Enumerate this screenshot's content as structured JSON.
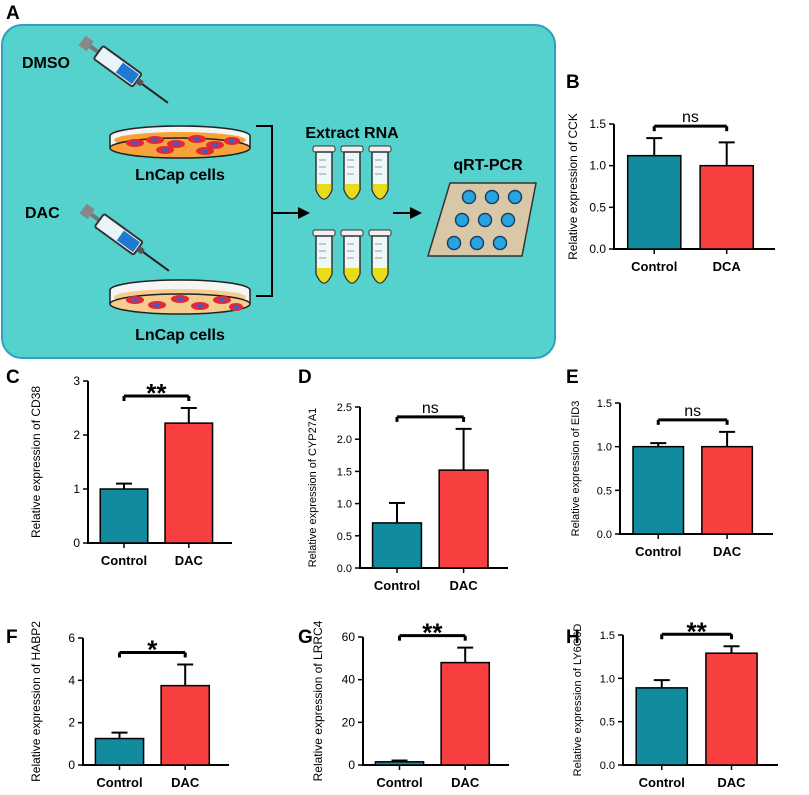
{
  "colors": {
    "control": "#138b9e",
    "treatment": "#f7403f",
    "schematic_bg": "#56d2ce",
    "dish_medium_dmso": "#f7a33a",
    "dish_medium_dac": "#f6cd8e",
    "cell": "#e0283a",
    "nucleus": "#3b5fd0",
    "tube_liquid": "#e8dc1a",
    "plate": "#d9c8a7",
    "well": "#27a5dd"
  },
  "schematic": {
    "panel_letter": "A",
    "dmso_label": "DMSO",
    "dac_label": "DAC",
    "cells_label_top": "LnCap cells",
    "cells_label_bottom": "LnCap cells",
    "extract_label": "Extract RNA",
    "qpcr_label": "qRT-PCR",
    "icons": [
      "syringe-icon",
      "petri-dish-icon",
      "tube-icon",
      "plate-icon",
      "arrow-icon"
    ]
  },
  "chart_data": [
    {
      "id": "B",
      "type": "bar",
      "panel_letter": "B",
      "title": "",
      "xlabel": "",
      "ylabel": "Relative expression of CCK",
      "categories": [
        "Control",
        "DCA"
      ],
      "values": [
        1.12,
        1.0
      ],
      "errors": [
        0.21,
        0.28
      ],
      "ylim": [
        0,
        1.5
      ],
      "yticks": [
        0.0,
        0.5,
        1.0,
        1.5
      ],
      "ytick_labels": [
        "0.0",
        "0.5",
        "1.0",
        "1.5"
      ],
      "significance": "ns"
    },
    {
      "id": "C",
      "type": "bar",
      "panel_letter": "C",
      "title": "",
      "xlabel": "",
      "ylabel": "Relative expression of CD38",
      "categories": [
        "Control",
        "DAC"
      ],
      "values": [
        1.0,
        2.22
      ],
      "errors": [
        0.1,
        0.28
      ],
      "ylim": [
        0,
        3
      ],
      "yticks": [
        0,
        1,
        2,
        3
      ],
      "ytick_labels": [
        "0",
        "1",
        "2",
        "3"
      ],
      "significance": "**"
    },
    {
      "id": "D",
      "type": "bar",
      "panel_letter": "D",
      "title": "",
      "xlabel": "",
      "ylabel": "Relative expression of CYP27A1",
      "categories": [
        "Control",
        "DAC"
      ],
      "values": [
        0.7,
        1.52
      ],
      "errors": [
        0.31,
        0.64
      ],
      "ylim": [
        0,
        2.5
      ],
      "yticks": [
        0.0,
        0.5,
        1.0,
        1.5,
        2.0,
        2.5
      ],
      "ytick_labels": [
        "0.0",
        "0.5",
        "1.0",
        "1.5",
        "2.0",
        "2.5"
      ],
      "significance": "ns"
    },
    {
      "id": "E",
      "type": "bar",
      "panel_letter": "E",
      "title": "",
      "xlabel": "",
      "ylabel": "Relative expression of EID3",
      "categories": [
        "Control",
        "DAC"
      ],
      "values": [
        1.0,
        1.0
      ],
      "errors": [
        0.04,
        0.17
      ],
      "ylim": [
        0,
        1.5
      ],
      "yticks": [
        0.0,
        0.5,
        1.0,
        1.5
      ],
      "ytick_labels": [
        "0.0",
        "0.5",
        "1.0",
        "1.5"
      ],
      "significance": "ns"
    },
    {
      "id": "F",
      "type": "bar",
      "panel_letter": "F",
      "title": "",
      "xlabel": "",
      "ylabel": "Relative expression of HABP2",
      "categories": [
        "Control",
        "DAC"
      ],
      "values": [
        1.25,
        3.75
      ],
      "errors": [
        0.28,
        1.0
      ],
      "ylim": [
        0,
        6
      ],
      "yticks": [
        0,
        2,
        4,
        6
      ],
      "ytick_labels": [
        "0",
        "2",
        "4",
        "6"
      ],
      "significance": "*"
    },
    {
      "id": "G",
      "type": "bar",
      "panel_letter": "G",
      "title": "",
      "xlabel": "",
      "ylabel": "Relative expression of LRRC4",
      "categories": [
        "Control",
        "DAC"
      ],
      "values": [
        1.5,
        48
      ],
      "errors": [
        0.6,
        7
      ],
      "ylim": [
        0,
        60
      ],
      "yticks": [
        0,
        20,
        40,
        60
      ],
      "ytick_labels": [
        "0",
        "20",
        "40",
        "60"
      ],
      "significance": "**"
    },
    {
      "id": "H",
      "type": "bar",
      "panel_letter": "H",
      "title": "",
      "xlabel": "",
      "ylabel": "Relative expression of LY6G6D",
      "categories": [
        "Control",
        "DAC"
      ],
      "values": [
        0.89,
        1.29
      ],
      "errors": [
        0.09,
        0.08
      ],
      "ylim": [
        0,
        1.5
      ],
      "yticks": [
        0.0,
        0.5,
        1.0,
        1.5
      ],
      "ytick_labels": [
        "0.0",
        "0.5",
        "1.0",
        "1.5"
      ],
      "significance": "**"
    }
  ]
}
